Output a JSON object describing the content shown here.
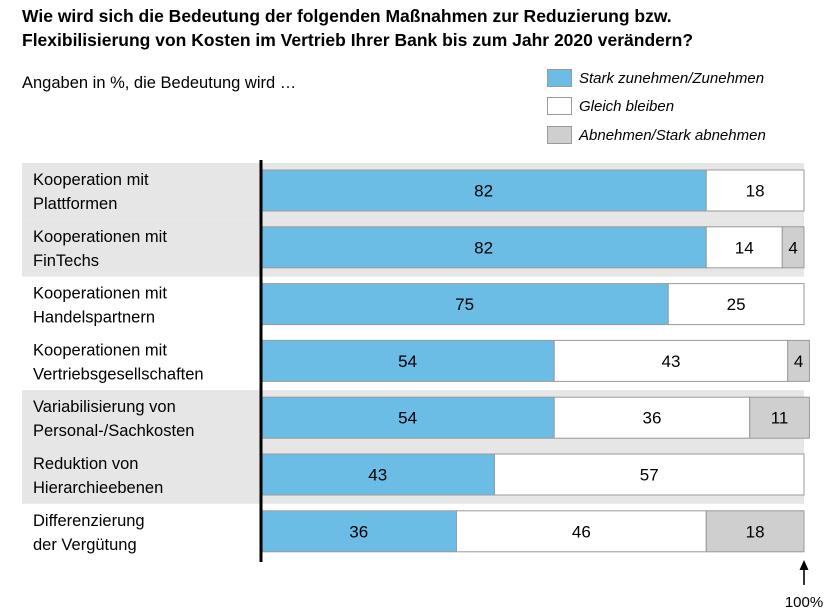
{
  "title": {
    "line1": "Wie wird sich die Bedeutung der folgenden Maßnahmen zur Reduzierung bzw.",
    "line2": "Flexibilisierung von Kosten im Vertrieb Ihrer Bank bis zum Jahr 2020 verändern?"
  },
  "subtitle": "Angaben in %, die Bedeutung wird …",
  "legend": [
    {
      "label": "Stark zunehmen/Zunehmen",
      "color": "#6bbde5"
    },
    {
      "label": "Gleich bleiben",
      "color": "#ffffff"
    },
    {
      "label": "Abnehmen/Stark abnehmen",
      "color": "#cfcfcf"
    }
  ],
  "marker_label": "100%",
  "colors": {
    "band": "#e6e6e6",
    "axis": "#000000",
    "bar_border": "#9a9a9a"
  },
  "chart_data": {
    "type": "bar",
    "orientation": "horizontal",
    "stacked": true,
    "categories": [
      [
        "Kooperation mit",
        "Plattformen"
      ],
      [
        "Kooperationen mit",
        "FinTechs"
      ],
      [
        "Kooperationen mit",
        "Handelspartnern"
      ],
      [
        "Kooperationen mit",
        "Vertriebsgesellschaften"
      ],
      [
        "Variabilisierung von",
        "Personal-/Sachkosten"
      ],
      [
        "Reduktion von",
        "Hierarchieebenen"
      ],
      [
        "Differenzierung",
        "der Vergütung"
      ]
    ],
    "category_shading": [
      true,
      true,
      false,
      false,
      true,
      true,
      false
    ],
    "series": [
      {
        "name": "Stark zunehmen/Zunehmen",
        "values": [
          82,
          82,
          75,
          54,
          54,
          43,
          36
        ]
      },
      {
        "name": "Gleich bleiben",
        "values": [
          18,
          14,
          25,
          43,
          36,
          57,
          46
        ]
      },
      {
        "name": "Abnehmen/Stark abnehmen",
        "values": [
          0,
          4,
          0,
          4,
          11,
          0,
          18
        ]
      }
    ],
    "xlim": [
      0,
      100
    ]
  }
}
